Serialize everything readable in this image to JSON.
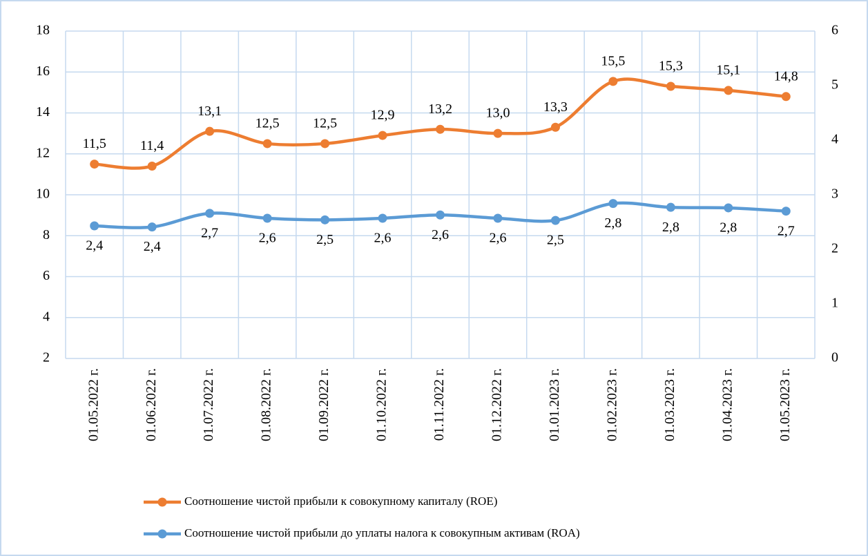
{
  "chart_data": {
    "type": "line",
    "categories": [
      "01.05.2022 г.",
      "01.06.2022 г.",
      "01.07.2022 г.",
      "01.08.2022 г.",
      "01.09.2022 г.",
      "01.10.2022 г.",
      "01.11.2022 г.",
      "01.12.2022 г.",
      "01.01.2023 г.",
      "01.02.2023 г.",
      "01.03.2023 г.",
      "01.04.2023 г.",
      "01.05.2023 г."
    ],
    "series": [
      {
        "name": "Соотношение чистой прибыли к совокупному капиталу (ROE)",
        "color": "#ed7d31",
        "values": [
          11.5,
          11.4,
          13.1,
          12.5,
          12.5,
          12.9,
          13.2,
          13.0,
          13.3,
          15.54,
          15.3,
          15.1,
          14.8
        ],
        "value_labels": [
          "11,5",
          "11,4",
          "13,1",
          "12,5",
          "12,5",
          "12,9",
          "13,2",
          "13,0",
          "13,3",
          "15,5",
          "15,3",
          "15,1",
          "14,8"
        ]
      },
      {
        "name": "Соотношение чистой прибыли до уплаты налога к совокупным активам (ROA)",
        "color": "#5b9bd5",
        "axis": "y2",
        "values": [
          2.43,
          2.41,
          2.66,
          2.57,
          2.54,
          2.57,
          2.63,
          2.57,
          2.53,
          2.84,
          2.77,
          2.76,
          2.7
        ],
        "value_labels": [
          "2,4",
          "2,4",
          "2,7",
          "2,6",
          "2,5",
          "2,6",
          "2,6",
          "2,6",
          "2,5",
          "2,8",
          "2,8",
          "2,8",
          "2,7"
        ]
      }
    ],
    "ylim": [
      2,
      18
    ],
    "yticks": [
      2,
      4,
      6,
      8,
      10,
      12,
      14,
      16,
      18
    ],
    "y2lim": [
      0,
      6
    ],
    "y2ticks": [
      0,
      1,
      2,
      3,
      4,
      5,
      6
    ],
    "grid": true,
    "legend": "bottom"
  }
}
